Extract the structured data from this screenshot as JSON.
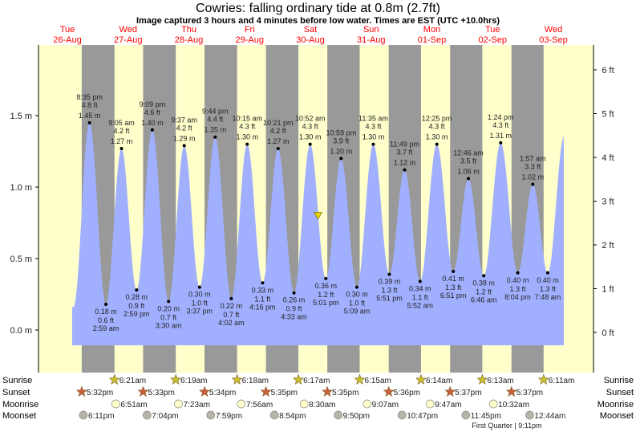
{
  "chart_data": {
    "type": "area",
    "title": "Cowries: falling  ordinary tide at 0.8m (2.7ft)",
    "subtitle": "Image captured 3 hours and 4 minutes before low water. Times are EST (UTC +10.0hrs)",
    "days": [
      {
        "weekday": "Tue",
        "date": "26-Aug"
      },
      {
        "weekday": "Wed",
        "date": "27-Aug"
      },
      {
        "weekday": "Thu",
        "date": "28-Aug"
      },
      {
        "weekday": "Fri",
        "date": "29-Aug"
      },
      {
        "weekday": "Sat",
        "date": "30-Aug"
      },
      {
        "weekday": "Sun",
        "date": "31-Aug"
      },
      {
        "weekday": "Mon",
        "date": "01-Sep"
      },
      {
        "weekday": "Tue",
        "date": "02-Sep"
      },
      {
        "weekday": "Wed",
        "date": "03-Sep"
      }
    ],
    "y_left": {
      "unit": "m",
      "ticks": [
        "0.0 m",
        "0.5 m",
        "1.0 m",
        "1.5 m"
      ],
      "values": [
        0,
        0.5,
        1.0,
        1.5
      ]
    },
    "y_right": {
      "unit": "ft",
      "ticks": [
        "0 ft",
        "1 ft",
        "2 ft",
        "3 ft",
        "4 ft",
        "5 ft",
        "6 ft"
      ],
      "values": [
        0,
        1,
        2,
        3,
        4,
        5,
        6
      ]
    },
    "current": {
      "date": "30-Aug",
      "time": "1:57 pm",
      "m": 0.8,
      "ft": 2.7
    },
    "tides": [
      {
        "date": "26-Aug",
        "time": "8:35 pm",
        "type": "high",
        "m": "1.45 m",
        "ft": "4.8 ft"
      },
      {
        "date": "27-Aug",
        "time": "2:59 am",
        "type": "low",
        "m": "0.18 m",
        "ft": "0.6 ft"
      },
      {
        "date": "27-Aug",
        "time": "9:05 am",
        "type": "high",
        "m": "1.27 m",
        "ft": "4.2 ft"
      },
      {
        "date": "27-Aug",
        "time": "2:59 pm",
        "type": "low",
        "m": "0.28 m",
        "ft": "0.9 ft"
      },
      {
        "date": "27-Aug",
        "time": "9:09 pm",
        "type": "high",
        "m": "1.40 m",
        "ft": "4.6 ft"
      },
      {
        "date": "28-Aug",
        "time": "3:30 am",
        "type": "low",
        "m": "0.20 m",
        "ft": "0.7 ft"
      },
      {
        "date": "28-Aug",
        "time": "9:37 am",
        "type": "high",
        "m": "1.29 m",
        "ft": "4.2 ft"
      },
      {
        "date": "28-Aug",
        "time": "3:37 pm",
        "type": "low",
        "m": "0.30 m",
        "ft": "1.0 ft"
      },
      {
        "date": "28-Aug",
        "time": "9:44 pm",
        "type": "high",
        "m": "1.35 m",
        "ft": "4.4 ft"
      },
      {
        "date": "29-Aug",
        "time": "4:02 am",
        "type": "low",
        "m": "0.22 m",
        "ft": "0.7 ft"
      },
      {
        "date": "29-Aug",
        "time": "10:15 am",
        "type": "high",
        "m": "1.30 m",
        "ft": "4.3 ft"
      },
      {
        "date": "29-Aug",
        "time": "4:16 pm",
        "type": "low",
        "m": "0.33 m",
        "ft": "1.1 ft"
      },
      {
        "date": "29-Aug",
        "time": "10:21 pm",
        "type": "high",
        "m": "1.27 m",
        "ft": "4.2 ft"
      },
      {
        "date": "30-Aug",
        "time": "4:33 am",
        "type": "low",
        "m": "0.26 m",
        "ft": "0.9 ft"
      },
      {
        "date": "30-Aug",
        "time": "10:52 am",
        "type": "high",
        "m": "1.30 m",
        "ft": "4.3 ft"
      },
      {
        "date": "30-Aug",
        "time": "5:01 pm",
        "type": "low",
        "m": "0.36 m",
        "ft": "1.2 ft"
      },
      {
        "date": "30-Aug",
        "time": "10:59 pm",
        "type": "high",
        "m": "1.20 m",
        "ft": "3.9 ft"
      },
      {
        "date": "31-Aug",
        "time": "5:09 am",
        "type": "low",
        "m": "0.30 m",
        "ft": "1.0 ft"
      },
      {
        "date": "31-Aug",
        "time": "11:35 am",
        "type": "high",
        "m": "1.30 m",
        "ft": "4.3 ft"
      },
      {
        "date": "31-Aug",
        "time": "5:51 pm",
        "type": "low",
        "m": "0.39 m",
        "ft": "1.3 ft"
      },
      {
        "date": "31-Aug",
        "time": "11:49 pm",
        "type": "high",
        "m": "1.12 m",
        "ft": "3.7 ft"
      },
      {
        "date": "01-Sep",
        "time": "5:52 am",
        "type": "low",
        "m": "0.34 m",
        "ft": "1.1 ft"
      },
      {
        "date": "01-Sep",
        "time": "12:25 pm",
        "type": "high",
        "m": "1.30 m",
        "ft": "4.3 ft"
      },
      {
        "date": "01-Sep",
        "time": "6:51 pm",
        "type": "low",
        "m": "0.41 m",
        "ft": "1.3 ft"
      },
      {
        "date": "02-Sep",
        "time": "12:46 am",
        "type": "high",
        "m": "1.06 m",
        "ft": "3.5 ft"
      },
      {
        "date": "02-Sep",
        "time": "6:46 am",
        "type": "low",
        "m": "0.38 m",
        "ft": "1.2 ft"
      },
      {
        "date": "02-Sep",
        "time": "1:24 pm",
        "type": "high",
        "m": "1.31 m",
        "ft": "4.3 ft"
      },
      {
        "date": "02-Sep",
        "time": "8:04 pm",
        "type": "low",
        "m": "0.40 m",
        "ft": "1.3 ft"
      },
      {
        "date": "03-Sep",
        "time": "1:57 am",
        "type": "high",
        "m": "1.02 m",
        "ft": "3.3 ft"
      },
      {
        "date": "03-Sep",
        "time": "7:48 am",
        "type": "low",
        "m": "0.40 m",
        "ft": "1.3 ft"
      }
    ],
    "astro": {
      "labels": {
        "sunrise": "Sunrise",
        "sunset": "Sunset",
        "moonrise": "Moonrise",
        "moonset": "Moonset"
      },
      "sunrise": [
        [
          "27-Aug",
          "6:21am"
        ],
        [
          "28-Aug",
          "6:19am"
        ],
        [
          "29-Aug",
          "6:18am"
        ],
        [
          "30-Aug",
          "6:17am"
        ],
        [
          "31-Aug",
          "6:15am"
        ],
        [
          "01-Sep",
          "6:14am"
        ],
        [
          "02-Sep",
          "6:13am"
        ],
        [
          "03-Sep",
          "6:11am"
        ]
      ],
      "sunset": [
        [
          "26-Aug",
          "5:32pm"
        ],
        [
          "27-Aug",
          "5:33pm"
        ],
        [
          "28-Aug",
          "5:34pm"
        ],
        [
          "29-Aug",
          "5:35pm"
        ],
        [
          "30-Aug",
          "5:35pm"
        ],
        [
          "31-Aug",
          "5:36pm"
        ],
        [
          "01-Sep",
          "5:37pm"
        ],
        [
          "02-Sep",
          "5:37pm"
        ]
      ],
      "moonrise": [
        [
          "27-Aug",
          "6:51am"
        ],
        [
          "28-Aug",
          "7:23am"
        ],
        [
          "29-Aug",
          "7:56am"
        ],
        [
          "30-Aug",
          "8:30am"
        ],
        [
          "31-Aug",
          "9:07am"
        ],
        [
          "01-Sep",
          "9:47am"
        ],
        [
          "02-Sep",
          "10:32am"
        ]
      ],
      "moonset": [
        [
          "26-Aug",
          "6:11pm"
        ],
        [
          "27-Aug",
          "7:04pm"
        ],
        [
          "28-Aug",
          "7:59pm"
        ],
        [
          "29-Aug",
          "8:54pm"
        ],
        [
          "30-Aug",
          "9:50pm"
        ],
        [
          "31-Aug",
          "10:47pm"
        ],
        [
          "01-Sep",
          "11:45pm"
        ],
        [
          "03-Sep",
          "12:44am"
        ]
      ],
      "moon_phase": "First Quarter | 9:11pm"
    },
    "colors": {
      "day": "#ffffcc",
      "night": "#999999",
      "water": "#a0b0ff",
      "day_label": "#ff0000",
      "sunrise_icon": "#c8c030",
      "sunset_icon": "#c86040",
      "moonrise_icon": "#ffffcc",
      "moonset_icon": "#b8b4a8"
    }
  }
}
